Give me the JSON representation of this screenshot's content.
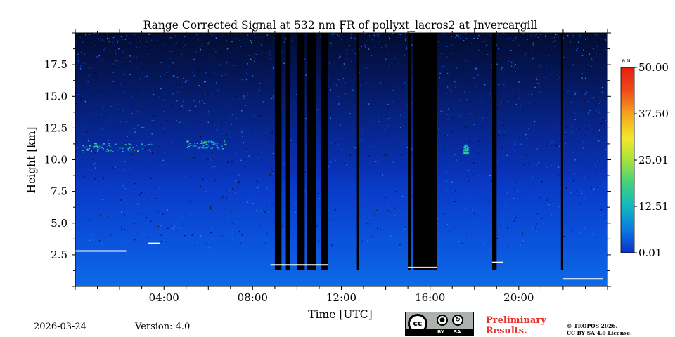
{
  "chart_data": {
    "type": "heatmap",
    "title": "Range Corrected Signal at 532 nm FR of pollyxt_lacros2 at Invercargill",
    "xlabel": "Time [UTC]",
    "ylabel": "Height [km]",
    "xlim_hours": [
      0,
      24
    ],
    "ylim_km": [
      0,
      20
    ],
    "x_ticks": [
      {
        "value": 4,
        "label": "04:00"
      },
      {
        "value": 8,
        "label": "08:00"
      },
      {
        "value": 12,
        "label": "12:00"
      },
      {
        "value": 16,
        "label": "16:00"
      },
      {
        "value": 20,
        "label": "20:00"
      }
    ],
    "y_ticks": [
      {
        "value": 2.5,
        "label": "2.5"
      },
      {
        "value": 5.0,
        "label": "5.0"
      },
      {
        "value": 7.5,
        "label": "7.5"
      },
      {
        "value": 10.0,
        "label": "10.0"
      },
      {
        "value": 12.5,
        "label": "12.5"
      },
      {
        "value": 15.0,
        "label": "15.0"
      },
      {
        "value": 17.5,
        "label": "17.5"
      }
    ],
    "colorbar": {
      "unit": "a.u.",
      "range": [
        0.01,
        50.0
      ],
      "ticks": [
        {
          "value": 50.0,
          "label": "50.00"
        },
        {
          "value": 37.5,
          "label": "37.50"
        },
        {
          "value": 25.01,
          "label": "25.01"
        },
        {
          "value": 12.51,
          "label": "12.51"
        },
        {
          "value": 0.01,
          "label": "0.01"
        }
      ],
      "colors": [
        "#0a30c8",
        "#0a78e0",
        "#11b8c0",
        "#44d27a",
        "#a8e23c",
        "#f2e82a",
        "#f7a21c",
        "#f04818",
        "#e61e10"
      ]
    },
    "features": {
      "no_signal_periods_hours": [
        [
          9.0,
          9.3
        ],
        [
          9.5,
          9.7
        ],
        [
          10.0,
          10.35
        ],
        [
          10.45,
          10.85
        ],
        [
          11.1,
          11.4
        ],
        [
          12.7,
          12.8
        ],
        [
          15.0,
          15.15
        ],
        [
          15.25,
          16.3
        ],
        [
          18.8,
          19.0
        ],
        [
          21.9,
          22.0
        ]
      ],
      "boundary_layer_top_km": [
        {
          "start": 0.0,
          "end": 2.3,
          "height": 2.8
        },
        {
          "start": 3.3,
          "end": 3.8,
          "height": 3.4
        },
        {
          "start": 8.8,
          "end": 11.4,
          "height": 1.7
        },
        {
          "start": 15.0,
          "end": 16.3,
          "height": 1.5
        },
        {
          "start": 18.8,
          "end": 19.3,
          "height": 1.9
        },
        {
          "start": 22.0,
          "end": 23.8,
          "height": 0.6
        }
      ],
      "cirrus_layers_km": [
        {
          "start": 0.3,
          "end": 3.5,
          "height": 11.0
        },
        {
          "start": 5.0,
          "end": 6.8,
          "height": 11.2
        },
        {
          "start": 17.5,
          "end": 17.7,
          "height": 10.8
        }
      ]
    }
  },
  "footer": {
    "date": "2026-03-24",
    "version": "Version: 4.0",
    "license_badge": {
      "left": "BY",
      "right": "SA"
    },
    "preliminary_line1": "Preliminary",
    "preliminary_line2": "Results.",
    "copyright_line1": "© TROPOS 2026.",
    "copyright_line2": "CC BY SA 4.0 License."
  }
}
